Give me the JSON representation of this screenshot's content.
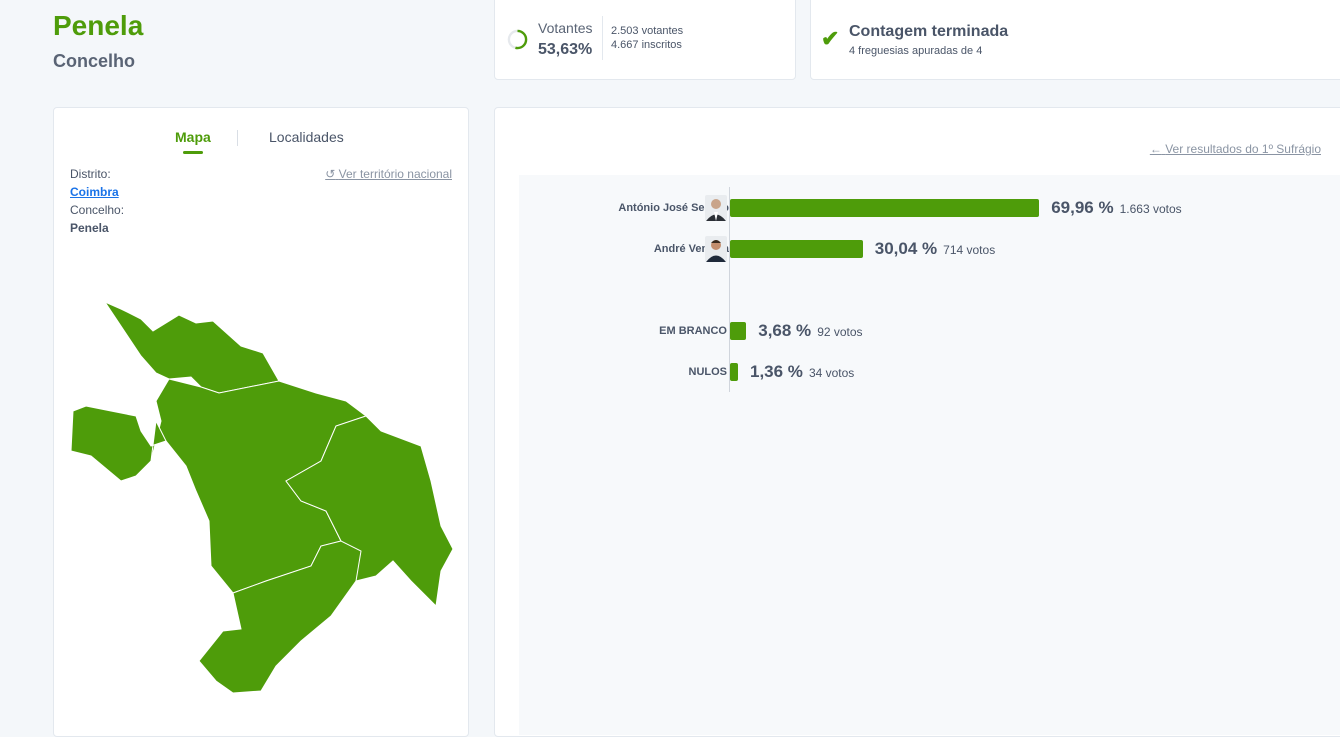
{
  "header": {
    "title": "Penela",
    "subtitle": "Concelho"
  },
  "votantes": {
    "label": "Votantes",
    "percent": "53,63%",
    "percent_value": 53.63,
    "voters": "2.503 votantes",
    "registered": "4.667 inscritos"
  },
  "contagem": {
    "title": "Contagem terminada",
    "subtitle": "4 freguesias apuradas de 4"
  },
  "map_panel": {
    "tabs": [
      {
        "label": "Mapa"
      },
      {
        "label": "Localidades"
      }
    ],
    "distrito_label": "Distrito:",
    "distrito": "Coimbra",
    "concelho_label": "Concelho:",
    "concelho": "Penela",
    "national_link": "Ver território nacional",
    "map_color": "#4e9c0a"
  },
  "results": {
    "first_round_link": "Ver resultados do 1º Sufrágio",
    "bar_color": "#4e9c0a",
    "candidates": [
      {
        "name": "António José Seguro",
        "percent": "69,96 %",
        "value": 69.96,
        "votes": "1.663 votos"
      },
      {
        "name": "André Ventura",
        "percent": "30,04 %",
        "value": 30.04,
        "votes": "714 votos"
      }
    ],
    "others": [
      {
        "name": "EM BRANCO",
        "percent": "3,68 %",
        "value": 3.68,
        "votes": "92 votos"
      },
      {
        "name": "NULOS",
        "percent": "1,36 %",
        "value": 1.36,
        "votes": "34 votos"
      }
    ]
  }
}
